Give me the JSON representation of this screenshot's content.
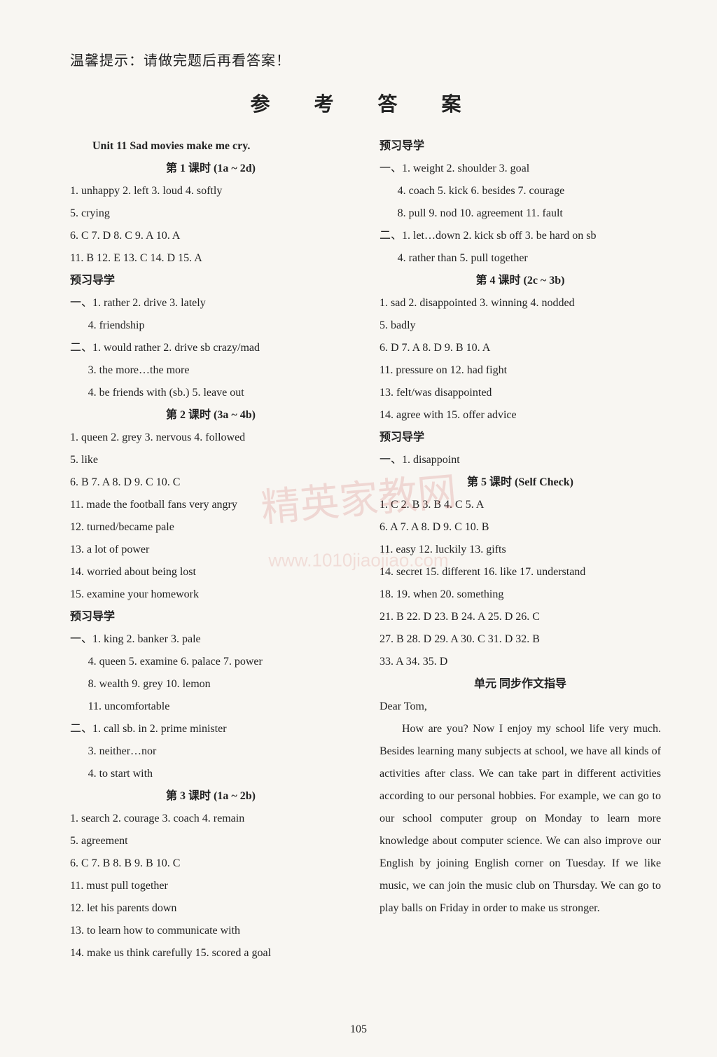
{
  "tip": "温馨提示：请做完题后再看答案！",
  "main_title": "参 考 答 案",
  "page_number": "105",
  "watermark_text": "精英家教网",
  "watermark_url": "www.1010jiaojiao.com",
  "left": {
    "unit_title": "Unit 11   Sad movies make me cry.",
    "lesson1_title": "第 1 课时 (1a ~ 2d)",
    "l1_r1": "1. unhappy   2. left   3. loud   4. softly",
    "l1_r2": "5. crying",
    "l1_r3": "6. C   7. D   8. C   9. A   10. A",
    "l1_r4": "11. B   12. E   13. C   14. D   15. A",
    "prestudy_title": "预习导学",
    "l1_p1": "一、1. rather   2. drive   3. lately",
    "l1_p2": "4. friendship",
    "l1_p3": "二、1. would rather   2. drive sb crazy/mad",
    "l1_p4": "3. the more…the more",
    "l1_p5": "4. be friends with (sb.)   5. leave out",
    "lesson2_title": "第 2 课时 (3a ~ 4b)",
    "l2_r1": "1. queen   2. grey   3. nervous   4. followed",
    "l2_r2": "5. like",
    "l2_r3": "6. B   7. A   8. D   9. C   10. C",
    "l2_r4": "11. made the football fans very angry",
    "l2_r5": "12. turned/became pale",
    "l2_r6": "13. a lot of power",
    "l2_r7": "14. worried about being lost",
    "l2_r8": "15. examine your homework",
    "l2_p1": "一、1. king   2. banker   3. pale",
    "l2_p2": "4. queen   5. examine   6. palace   7. power",
    "l2_p3": "8. wealth   9. grey   10. lemon",
    "l2_p4": "11. uncomfortable",
    "l2_p5": "二、1. call sb. in   2. prime minister",
    "l2_p6": "3. neither…nor",
    "l2_p7": "4. to start with",
    "lesson3_title": "第 3 课时 (1a ~ 2b)",
    "l3_r1": "1. search   2. courage   3. coach   4. remain",
    "l3_r2": "5. agreement",
    "l3_r3": "6. C   7. B   8. B   9. B   10. C",
    "l3_r4": "11. must pull together",
    "l3_r5": "12. let his parents down",
    "l3_r6": "13. to learn how to communicate with",
    "l3_r7": "14. make us think carefully   15. scored a goal"
  },
  "right": {
    "prestudy_title": "预习导学",
    "r_p1": "一、1. weight   2. shoulder   3. goal",
    "r_p2": "4. coach   5. kick   6. besides   7. courage",
    "r_p3": "8. pull   9. nod   10. agreement   11. fault",
    "r_p4": "二、1. let…down   2. kick sb off   3. be hard on sb",
    "r_p5": "4. rather than   5. pull together",
    "lesson4_title": "第 4 课时 (2c ~ 3b)",
    "l4_r1": "1. sad   2. disappointed   3. winning   4. nodded",
    "l4_r2": "5. badly",
    "l4_r3": "6. D   7. A   8. D   9. B   10. A",
    "l4_r4": "11. pressure on   12. had fight",
    "l4_r5": "13. felt/was disappointed",
    "l4_r6": "14. agree with   15. offer advice",
    "l4_p1": "一、1. disappoint",
    "lesson5_title": "第 5 课时 (Self Check)",
    "l5_r1": "1. C   2. B   3. B   4. C   5. A",
    "l5_r2": "6. A   7. A   8. D   9. C   10. B",
    "l5_r3": "11. easy   12. luckily   13. gifts",
    "l5_r4": "14. secret   15. different   16. like   17. understand",
    "l5_r5": "18.        19. when   20. something",
    "l5_r6": "21. B   22. D   23. B   24. A   25. D   26. C",
    "l5_r7": "27. B   28. D   29. A   30. C   31. D   32. B",
    "l5_r8": "33. A   34.      35. D",
    "composition_title": "单元 同步作文指导",
    "letter_start": "Dear Tom,",
    "letter_body": "How are you? Now I enjoy my school life very much. Besides learning many subjects at school, we have all kinds of activities after class. We can take part in different activities according to our personal hobbies. For example, we can go to our school computer group on Monday to learn more knowledge about computer science. We can also improve our English by joining English corner on Tuesday. If we like music, we can join the music club on Thursday. We can go to play balls on Friday in order to make us stronger."
  }
}
